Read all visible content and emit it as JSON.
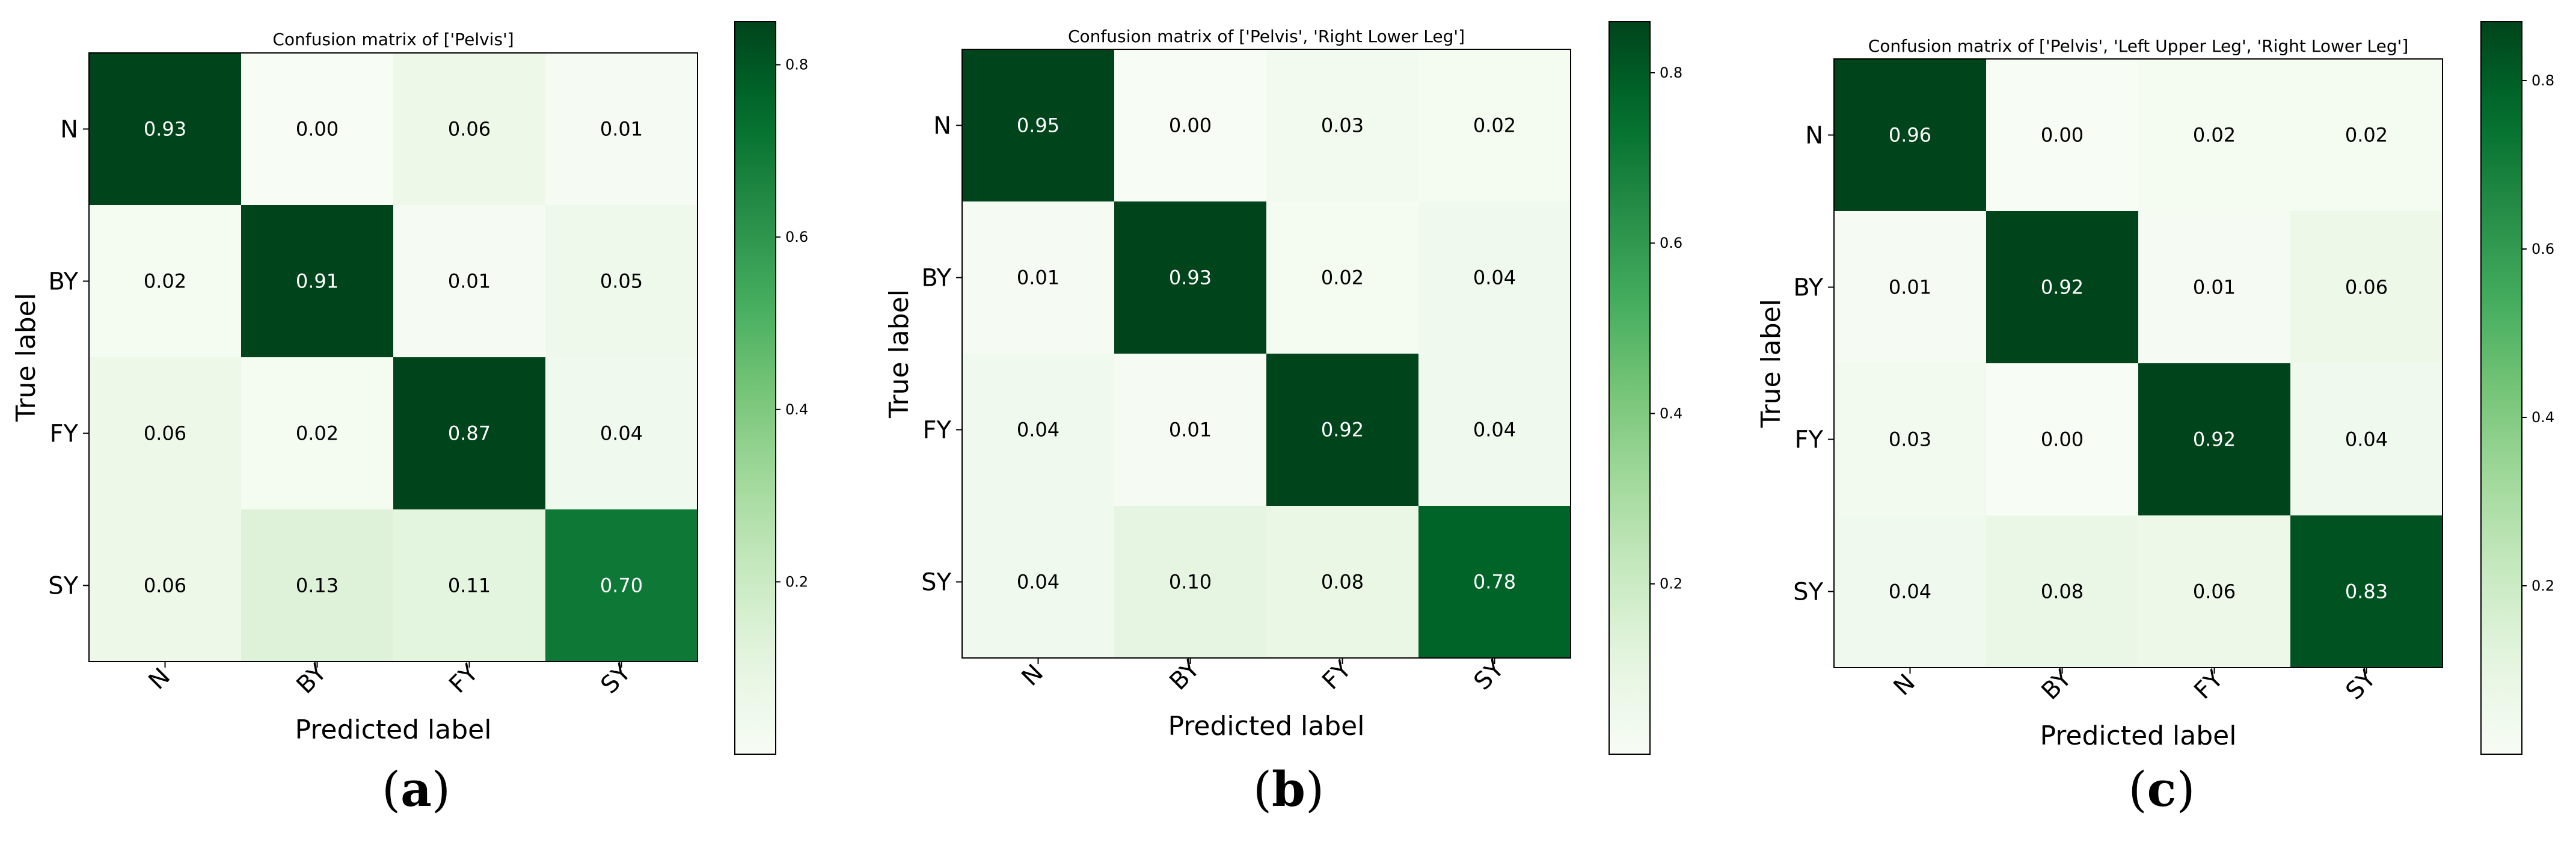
{
  "colors": {
    "cmap": "Greens",
    "light": "#f7fcf5",
    "dark": "#00441b",
    "text_on_dark": "#ffffff",
    "text_on_light": "#000000"
  },
  "chart_data": [
    {
      "type": "heatmap",
      "panel": "(a)",
      "panel_letter": "a",
      "title": "Confusion matrix of ['Pelvis']",
      "xlabel": "Predicted label",
      "ylabel": "True label",
      "x_categories": [
        "N",
        "BY",
        "FY",
        "SY"
      ],
      "y_categories": [
        "N",
        "BY",
        "FY",
        "SY"
      ],
      "values": [
        [
          0.93,
          0.0,
          0.06,
          0.01
        ],
        [
          0.02,
          0.91,
          0.01,
          0.05
        ],
        [
          0.06,
          0.02,
          0.87,
          0.04
        ],
        [
          0.06,
          0.13,
          0.11,
          0.7
        ]
      ],
      "colorbar": {
        "vmin": 0.0,
        "vmax": 0.85,
        "ticks": [
          "0.2",
          "0.4",
          "0.6",
          "0.8"
        ]
      }
    },
    {
      "type": "heatmap",
      "panel": "(b)",
      "panel_letter": "b",
      "title": "Confusion matrix of ['Pelvis', 'Right Lower Leg']",
      "xlabel": "Predicted label",
      "ylabel": "True label",
      "x_categories": [
        "N",
        "BY",
        "FY",
        "SY"
      ],
      "y_categories": [
        "N",
        "BY",
        "FY",
        "SY"
      ],
      "values": [
        [
          0.95,
          0.0,
          0.03,
          0.02
        ],
        [
          0.01,
          0.93,
          0.02,
          0.04
        ],
        [
          0.04,
          0.01,
          0.92,
          0.04
        ],
        [
          0.04,
          0.1,
          0.08,
          0.78
        ]
      ],
      "colorbar": {
        "vmin": 0.0,
        "vmax": 0.86,
        "ticks": [
          "0.2",
          "0.4",
          "0.6",
          "0.8"
        ]
      }
    },
    {
      "type": "heatmap",
      "panel": "(c)",
      "panel_letter": "c",
      "title": "Confusion matrix of ['Pelvis', 'Left Upper Leg', 'Right Lower Leg']",
      "xlabel": "Predicted label",
      "ylabel": "True label",
      "x_categories": [
        "N",
        "BY",
        "FY",
        "SY"
      ],
      "y_categories": [
        "N",
        "BY",
        "FY",
        "SY"
      ],
      "values": [
        [
          0.96,
          0.0,
          0.02,
          0.02
        ],
        [
          0.01,
          0.92,
          0.01,
          0.06
        ],
        [
          0.03,
          0.0,
          0.92,
          0.04
        ],
        [
          0.04,
          0.08,
          0.06,
          0.83
        ]
      ],
      "colorbar": {
        "vmin": 0.0,
        "vmax": 0.87,
        "ticks": [
          "0.2",
          "0.4",
          "0.6",
          "0.8"
        ]
      }
    }
  ]
}
